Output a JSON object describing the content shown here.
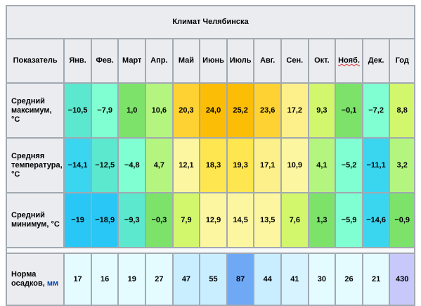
{
  "caption": "Климат Челябинска",
  "header": {
    "indicator": "Показатель",
    "months": [
      "Янв.",
      "Фев.",
      "Март",
      "Апр.",
      "Май",
      "Июнь",
      "Июль",
      "Авг.",
      "Сен.",
      "Окт.",
      "Нояб.",
      "Дек."
    ],
    "year": "Год"
  },
  "rows": [
    {
      "label": "Средний максимум, °C",
      "values": [
        "−10,5",
        "−7,9",
        "1,0",
        "10,6",
        "20,3",
        "24,0",
        "25,2",
        "23,6",
        "17,2",
        "9,3",
        "−0,1",
        "−7,2"
      ],
      "year": "8,8",
      "colors": [
        "#5ce8cf",
        "#80ffd2",
        "#7ce26a",
        "#b4f57f",
        "#fdd232",
        "#fbbd06",
        "#fbbd06",
        "#fdd232",
        "#fdf08a",
        "#d2f76d",
        "#7ce26a",
        "#80ffd2"
      ],
      "year_color": "#d2f76d"
    },
    {
      "label": "Средняя температура, °C",
      "values": [
        "−14,1",
        "−12,5",
        "−4,8",
        "4,7",
        "12,1",
        "18,3",
        "19,3",
        "17,1",
        "10,9",
        "4,1",
        "−5,2",
        "−11,1"
      ],
      "year": "3,2",
      "colors": [
        "#3ad6f0",
        "#5ce8cf",
        "#80ffd2",
        "#b4f57f",
        "#fdf6a0",
        "#fde64f",
        "#fde64f",
        "#fdf08a",
        "#fdf6a0",
        "#b4f57f",
        "#80ffd2",
        "#3ad6f0"
      ],
      "year_color": "#b4f57f"
    },
    {
      "label": "Средний минимум, °C",
      "values": [
        "−19",
        "−18,9",
        "−9,3",
        "−0,3",
        "7,9",
        "12,9",
        "14,5",
        "13,5",
        "7,6",
        "1,3",
        "−5,9",
        "−14,6"
      ],
      "year": "−0,9",
      "colors": [
        "#29c7f5",
        "#29c7f5",
        "#5ce8cf",
        "#7ce26a",
        "#d2f76d",
        "#fdf6a0",
        "#fdf6a0",
        "#fdf6a0",
        "#d2f76d",
        "#7ce26a",
        "#80ffd2",
        "#3ad6f0"
      ],
      "year_color": "#7ce26a"
    }
  ],
  "precip": {
    "label_main": "Норма осадков,",
    "label_unit": "мм",
    "values": [
      "17",
      "16",
      "19",
      "27",
      "47",
      "55",
      "87",
      "44",
      "41",
      "30",
      "26",
      "21"
    ],
    "year": "430",
    "colors": [
      "#e4fcff",
      "#e4fcff",
      "#e4fcff",
      "#e4fcff",
      "#c9eeff",
      "#c9eeff",
      "#6fa8f5",
      "#c9eeff",
      "#d6f3ff",
      "#e4fcff",
      "#e4fcff",
      "#e4fcff"
    ],
    "year_color": "#c8c8fb"
  }
}
